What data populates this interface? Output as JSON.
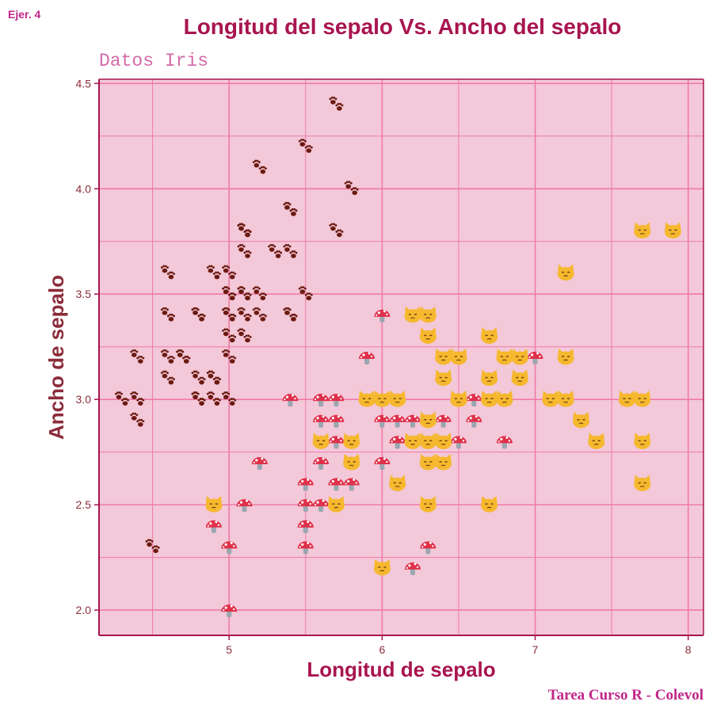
{
  "tag": "Ejer. 4",
  "title": "Longitud del sepalo Vs. Ancho del sepalo",
  "subtitle": "Datos Iris",
  "caption": "Tarea Curso R - Colevol",
  "colors": {
    "panel_bg": "#f3c8d8",
    "grid": "#f07aa8",
    "axis": "#a8144f",
    "title": "#a8144f",
    "xlabel": "#a8144f",
    "ylabel": "#8b2d3a",
    "setosa_marker": "#6b1a10",
    "versicolor_marker": "#e0304a",
    "virginica_marker": "#f5b82e"
  },
  "chart_data": {
    "type": "scatter",
    "xlabel": "Longitud de sepalo",
    "ylabel": "Ancho de sepalo",
    "xlim": [
      4.15,
      8.1
    ],
    "ylim": [
      1.88,
      4.52
    ],
    "xticks": [
      5,
      6,
      7,
      8
    ],
    "yticks": [
      2.0,
      2.5,
      3.0,
      3.5,
      4.0,
      4.5
    ],
    "grid": true,
    "legend": "none",
    "series": [
      {
        "marker": "paw-prints-emoji",
        "points": [
          [
            5.1,
            3.5
          ],
          [
            4.9,
            3.0
          ],
          [
            4.7,
            3.2
          ],
          [
            4.6,
            3.1
          ],
          [
            5.0,
            3.6
          ],
          [
            5.4,
            3.9
          ],
          [
            4.6,
            3.4
          ],
          [
            5.0,
            3.4
          ],
          [
            4.4,
            2.9
          ],
          [
            4.9,
            3.1
          ],
          [
            5.4,
            3.7
          ],
          [
            4.8,
            3.4
          ],
          [
            4.8,
            3.0
          ],
          [
            4.3,
            3.0
          ],
          [
            5.8,
            4.0
          ],
          [
            5.7,
            4.4
          ],
          [
            5.4,
            3.9
          ],
          [
            5.1,
            3.5
          ],
          [
            5.7,
            3.8
          ],
          [
            5.1,
            3.8
          ],
          [
            5.4,
            3.4
          ],
          [
            5.1,
            3.7
          ],
          [
            4.6,
            3.6
          ],
          [
            5.1,
            3.3
          ],
          [
            4.8,
            3.4
          ],
          [
            5.0,
            3.0
          ],
          [
            5.0,
            3.4
          ],
          [
            5.2,
            3.5
          ],
          [
            5.2,
            3.4
          ],
          [
            4.7,
            3.2
          ],
          [
            4.8,
            3.1
          ],
          [
            5.4,
            3.4
          ],
          [
            5.2,
            4.1
          ],
          [
            5.5,
            4.2
          ],
          [
            4.9,
            3.1
          ],
          [
            5.0,
            3.2
          ],
          [
            5.5,
            3.5
          ],
          [
            4.9,
            3.6
          ],
          [
            4.4,
            3.0
          ],
          [
            5.1,
            3.4
          ],
          [
            5.0,
            3.5
          ],
          [
            4.5,
            2.3
          ],
          [
            4.4,
            3.2
          ],
          [
            5.0,
            3.5
          ],
          [
            5.1,
            3.8
          ],
          [
            4.8,
            3.0
          ],
          [
            5.1,
            3.8
          ],
          [
            4.6,
            3.2
          ],
          [
            5.3,
            3.7
          ],
          [
            5.0,
            3.3
          ]
        ]
      },
      {
        "marker": "mushroom-emoji",
        "points": [
          [
            7.0,
            3.2
          ],
          [
            6.4,
            3.2
          ],
          [
            6.9,
            3.1
          ],
          [
            5.5,
            2.3
          ],
          [
            6.5,
            2.8
          ],
          [
            5.7,
            2.8
          ],
          [
            6.3,
            3.3
          ],
          [
            4.9,
            2.4
          ],
          [
            6.6,
            2.9
          ],
          [
            5.2,
            2.7
          ],
          [
            5.0,
            2.0
          ],
          [
            5.9,
            3.0
          ],
          [
            6.0,
            2.2
          ],
          [
            6.1,
            2.9
          ],
          [
            5.6,
            2.9
          ],
          [
            6.7,
            3.1
          ],
          [
            5.6,
            3.0
          ],
          [
            5.8,
            2.7
          ],
          [
            6.2,
            2.2
          ],
          [
            5.6,
            2.5
          ],
          [
            5.9,
            3.2
          ],
          [
            6.1,
            2.8
          ],
          [
            6.3,
            2.5
          ],
          [
            6.1,
            2.8
          ],
          [
            6.4,
            2.9
          ],
          [
            6.6,
            3.0
          ],
          [
            6.8,
            2.8
          ],
          [
            6.7,
            3.0
          ],
          [
            6.0,
            2.9
          ],
          [
            5.7,
            2.6
          ],
          [
            5.5,
            2.4
          ],
          [
            5.5,
            2.4
          ],
          [
            5.8,
            2.7
          ],
          [
            6.0,
            2.7
          ],
          [
            5.4,
            3.0
          ],
          [
            6.0,
            3.4
          ],
          [
            6.7,
            3.1
          ],
          [
            6.3,
            2.3
          ],
          [
            5.6,
            3.0
          ],
          [
            5.5,
            2.5
          ],
          [
            5.5,
            2.6
          ],
          [
            6.1,
            3.0
          ],
          [
            5.8,
            2.6
          ],
          [
            5.0,
            2.3
          ],
          [
            5.6,
            2.7
          ],
          [
            5.7,
            3.0
          ],
          [
            5.7,
            2.9
          ],
          [
            6.2,
            2.9
          ],
          [
            5.1,
            2.5
          ],
          [
            5.7,
            2.8
          ]
        ]
      },
      {
        "marker": "cat-face-emoji",
        "points": [
          [
            6.3,
            3.3
          ],
          [
            5.8,
            2.7
          ],
          [
            7.1,
            3.0
          ],
          [
            6.3,
            2.9
          ],
          [
            6.5,
            3.0
          ],
          [
            7.6,
            3.0
          ],
          [
            4.9,
            2.5
          ],
          [
            7.3,
            2.9
          ],
          [
            6.7,
            2.5
          ],
          [
            7.2,
            3.6
          ],
          [
            6.5,
            3.2
          ],
          [
            6.4,
            2.7
          ],
          [
            6.8,
            3.0
          ],
          [
            5.7,
            2.5
          ],
          [
            5.8,
            2.8
          ],
          [
            6.4,
            3.2
          ],
          [
            6.5,
            3.0
          ],
          [
            7.7,
            3.8
          ],
          [
            7.7,
            2.6
          ],
          [
            6.0,
            2.2
          ],
          [
            6.9,
            3.2
          ],
          [
            5.6,
            2.8
          ],
          [
            7.7,
            2.8
          ],
          [
            6.3,
            2.7
          ],
          [
            6.7,
            3.3
          ],
          [
            7.2,
            3.2
          ],
          [
            6.2,
            2.8
          ],
          [
            6.1,
            3.0
          ],
          [
            6.4,
            2.8
          ],
          [
            7.2,
            3.0
          ],
          [
            7.4,
            2.8
          ],
          [
            7.9,
            3.8
          ],
          [
            6.4,
            2.8
          ],
          [
            6.3,
            2.8
          ],
          [
            6.1,
            2.6
          ],
          [
            7.7,
            3.0
          ],
          [
            6.3,
            3.4
          ],
          [
            6.4,
            3.1
          ],
          [
            6.0,
            3.0
          ],
          [
            6.9,
            3.1
          ],
          [
            6.7,
            3.1
          ],
          [
            6.9,
            3.1
          ],
          [
            5.8,
            2.7
          ],
          [
            6.8,
            3.2
          ],
          [
            6.7,
            3.3
          ],
          [
            6.7,
            3.0
          ],
          [
            6.3,
            2.5
          ],
          [
            6.5,
            3.0
          ],
          [
            6.2,
            3.4
          ],
          [
            5.9,
            3.0
          ]
        ]
      }
    ]
  }
}
